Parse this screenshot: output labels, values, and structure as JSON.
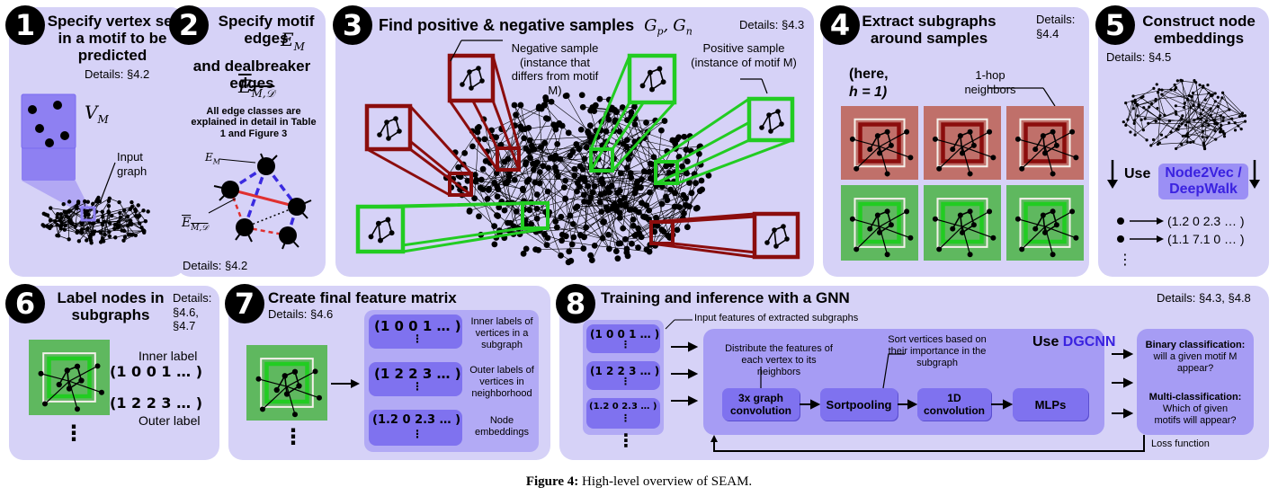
{
  "caption": {
    "label": "Figure 4:",
    "text": " High-level overview of SEAM."
  },
  "p1": {
    "num": "1",
    "title": "Specify vertex set in a motif to be predicted",
    "details": "Details: §4.2",
    "vm": "V",
    "vm_sub": "M",
    "input": "Input graph"
  },
  "p2": {
    "num": "2",
    "title_a": "Specify motif edges",
    "em": "E",
    "em_sub": "M",
    "title_b": "and dealbreaker edges",
    "ed": "E",
    "ed_sub": "M,𝒟",
    "note": "All edge classes are explained in detail in Table 1 and Figure 3",
    "lbl_em": "E",
    "lbl_em_sub": "M",
    "lbl_ed": "E",
    "lbl_ed_sub": "M,𝒟",
    "details": "Details: §4.2"
  },
  "p3": {
    "num": "3",
    "title": "Find positive & negative samples",
    "gp": "G",
    "gp_sub": "p",
    "gn": "G",
    "gn_sub": "n",
    "details": "Details: §4.3",
    "neg": "Negative sample (instance that differs from motif M)",
    "pos": "Positive sample (instance of motif M)"
  },
  "p4": {
    "num": "4",
    "title": "Extract subgraphs around samples",
    "details": "Details: §4.4",
    "here": "(here,",
    "h": "h = 1)",
    "hop": "1-hop neighbors"
  },
  "p5": {
    "num": "5",
    "title": "Construct node embeddings",
    "details": "Details: §4.5",
    "use": "Use ",
    "tool": "Node2Vec / DeepWalk",
    "e1": "(1.2 0 2.3 … )",
    "e2": "(1.1 7.1 0 … )",
    "dots": "⋮"
  },
  "p6": {
    "num": "6",
    "title": "Label nodes in subgraphs",
    "details": "Details: §4.6, §4.7",
    "inner": "Inner label",
    "v1": "(1 0 0 1 … )",
    "v2": "(1 2 2 3 … )",
    "outer": "Outer label",
    "dots": "⋮"
  },
  "p7": {
    "num": "7",
    "title": "Create final feature matrix",
    "details": "Details: §4.6",
    "r1": "(1 0 0 1 … )",
    "r2": "(1 2 2 3 … )",
    "r3": "(1.2 0 2.3 … )",
    "l1": "Inner labels of vertices in a subgraph",
    "l2": "Outer labels of vertices in neighborhood",
    "l3": "Node embeddings",
    "dots": "⋮"
  },
  "p8": {
    "num": "8",
    "title": "Training and inference with a GNN",
    "details": "Details: §4.3, §4.8",
    "input_feat": "Input features of extracted subgraphs",
    "f1": "(1 0 0 1 … )",
    "f2": "(1 2 2 3 … )",
    "f3": "(1.2 0 2.3 … )",
    "use": "Use ",
    "tool": "DGCNN",
    "distribute": "Distribute the features of each vertex to its neighbors",
    "sort": "Sort vertices based on their importance in the subgraph",
    "b1": "3x graph convolution",
    "b2": "Sortpooling",
    "b3": "1D convolution",
    "b4": "MLPs",
    "bin_t": "Binary classification:",
    "bin_d": "will a given motif M appear?",
    "multi_t": "Multi-classification:",
    "multi_d": "Which of given motifs will appear?",
    "loss": "Loss function",
    "dots": "⋮"
  },
  "colors": {
    "panel": "#d6d2f7",
    "accent": "#5a3ae8",
    "box": "#7f72ef",
    "red": "#8b0d0d",
    "green": "#22cc22",
    "redBg": "#c0706a",
    "greenBg": "#5fb85f"
  }
}
